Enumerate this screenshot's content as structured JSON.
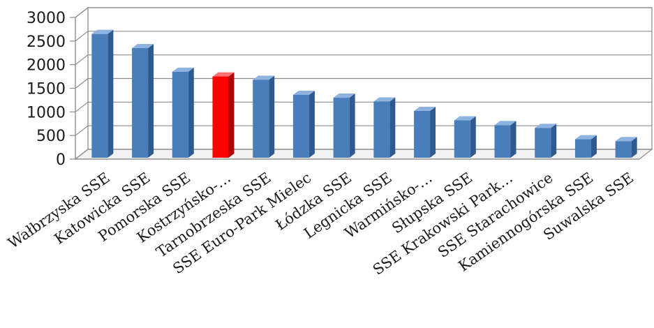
{
  "chart_data": {
    "type": "bar",
    "title": "",
    "xlabel": "",
    "ylabel": "",
    "ylim": [
      0,
      3000
    ],
    "yticks": [
      0,
      500,
      1000,
      1500,
      2000,
      2500,
      3000
    ],
    "grid": true,
    "categories": [
      "Wałbrzyska SSE",
      "Katowicka SSE",
      "Pomorska SSE",
      "Kostrzyńsko-…",
      "Tarnobrzeska SSE",
      "SSE Euro-Park Mielec",
      "Łódzka SSE",
      "Legnicka SSE",
      "Warmińsko-…",
      "Słupska SSE",
      "SSE Krakowski Park…",
      "SSE Starachowice",
      "Kamiennogórska SSE",
      "Suwalska SSE"
    ],
    "values": [
      2650,
      2350,
      1850,
      1750,
      1680,
      1360,
      1300,
      1220,
      1020,
      820,
      720,
      660,
      420,
      380
    ],
    "highlight_index": 3,
    "colors": {
      "bar": "#4a7ebb",
      "bar_side": "#2f5a8f",
      "bar_top": "#8fb3e0",
      "highlight": "#ff0000",
      "highlight_side": "#b30000",
      "highlight_top": "#ff7070",
      "grid": "#8c8c8c",
      "wall": "#ffffff"
    }
  }
}
